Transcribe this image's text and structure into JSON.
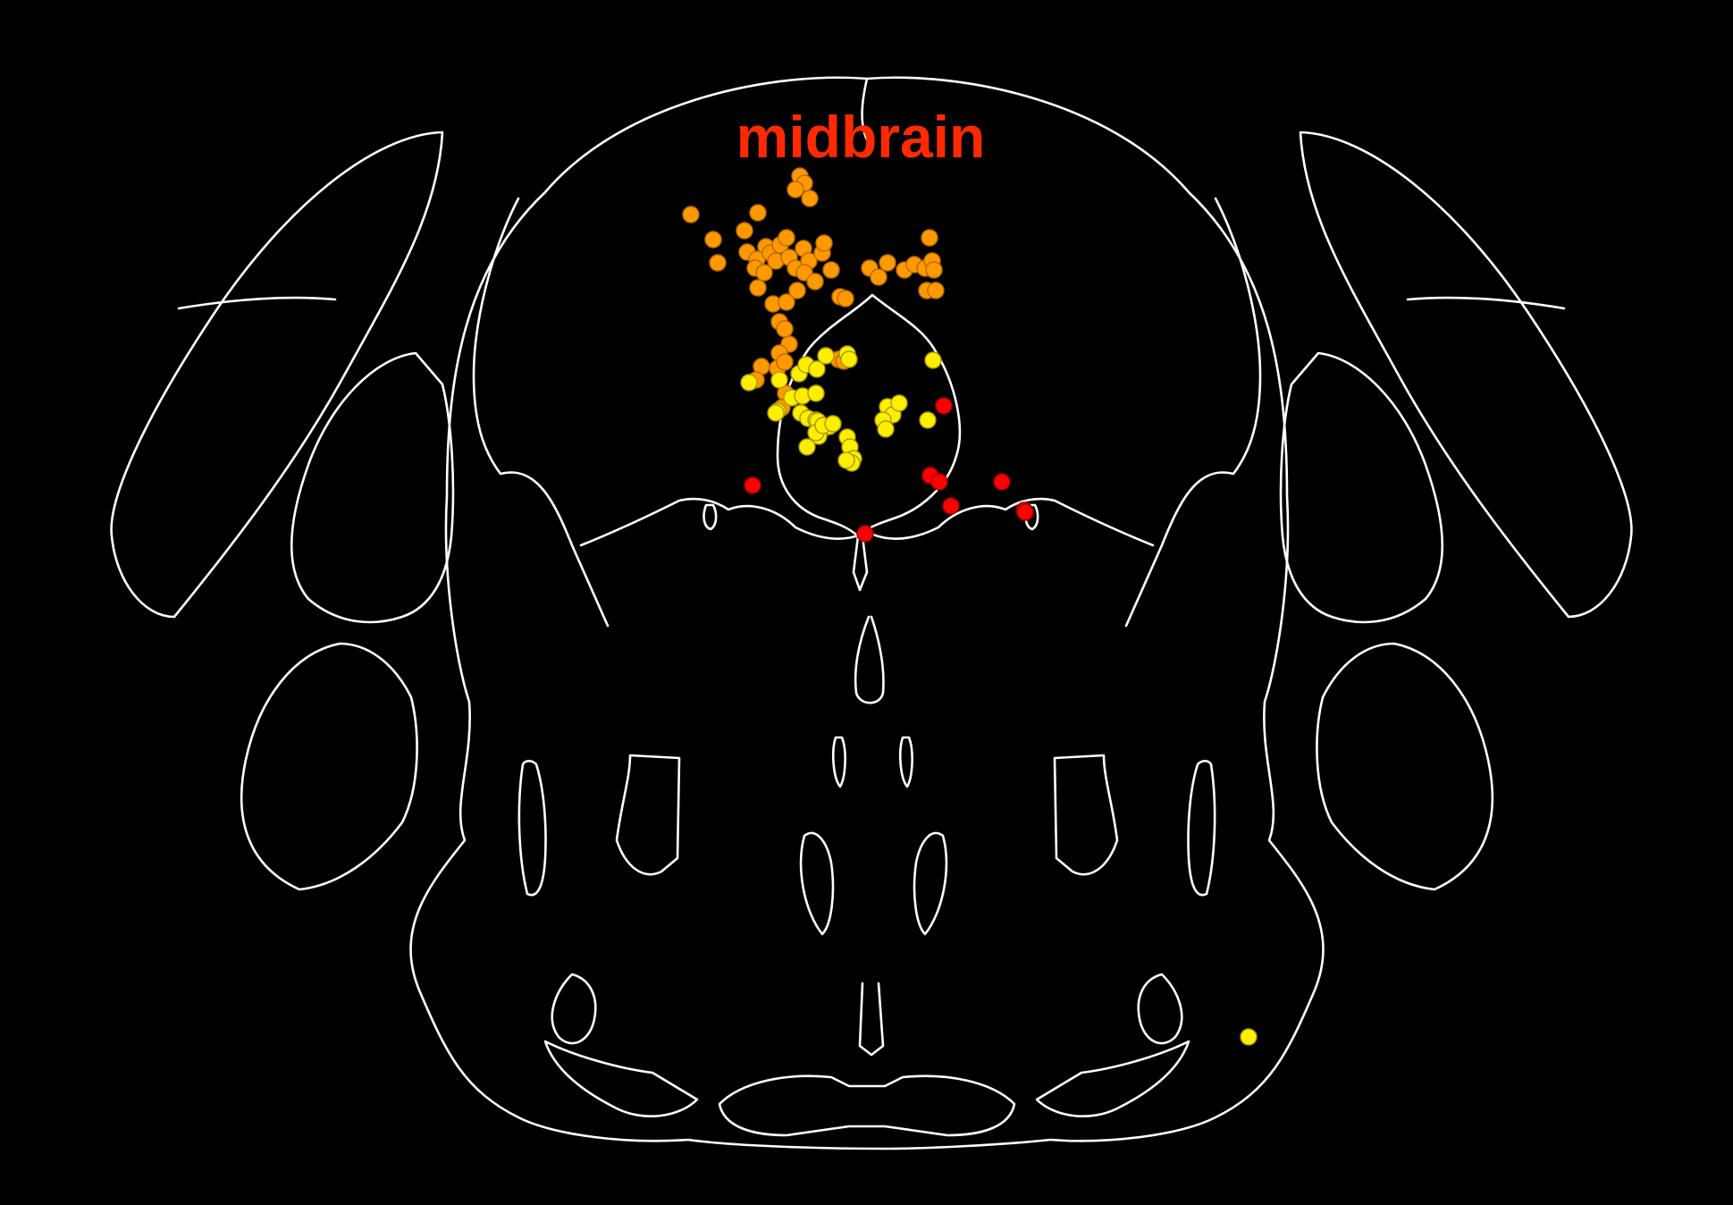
{
  "label": {
    "text": "midbrain",
    "color": "#ff2a00"
  },
  "colors": {
    "background": "#000000",
    "outline": "#ffffff"
  },
  "chart_data": {
    "type": "scatter",
    "series": [
      {
        "fill": "#ff9900",
        "edge": "#b86a00",
        "points": [
          [
            895,
            197
          ],
          [
            900,
            205
          ],
          [
            890,
            212
          ],
          [
            906,
            222
          ],
          [
            773,
            240
          ],
          [
            848,
            238
          ],
          [
            798,
            268
          ],
          [
            833,
            258
          ],
          [
            836,
            282
          ],
          [
            857,
            276
          ],
          [
            847,
            290
          ],
          [
            862,
            283
          ],
          [
            873,
            274
          ],
          [
            880,
            266
          ],
          [
            845,
            300
          ],
          [
            868,
            292
          ],
          [
            855,
            305
          ],
          [
            883,
            288
          ],
          [
            899,
            278
          ],
          [
            890,
            300
          ],
          [
            905,
            292
          ],
          [
            920,
            283
          ],
          [
            900,
            305
          ],
          [
            912,
            315
          ],
          [
            922,
            272
          ],
          [
            803,
            294
          ],
          [
            848,
            322
          ],
          [
            865,
            340
          ],
          [
            880,
            338
          ],
          [
            892,
            325
          ],
          [
            930,
            302
          ],
          [
            872,
            360
          ],
          [
            878,
            368
          ],
          [
            883,
            385
          ],
          [
            872,
            395
          ],
          [
            870,
            412
          ],
          [
            878,
            405
          ],
          [
            940,
            332
          ],
          [
            946,
            334
          ],
          [
            1040,
            266
          ],
          [
            973,
            300
          ],
          [
            983,
            310
          ],
          [
            993,
            294
          ],
          [
            1012,
            302
          ],
          [
            1023,
            296
          ],
          [
            1035,
            300
          ],
          [
            1043,
            292
          ],
          [
            1045,
            302
          ],
          [
            1037,
            325
          ],
          [
            1047,
            325
          ],
          [
            938,
            402
          ],
          [
            944,
            404
          ],
          [
            852,
            410
          ],
          [
            879,
            440
          ],
          [
            875,
            456
          ],
          [
            846,
            425
          ]
        ]
      },
      {
        "fill": "#ffee00",
        "edge": "#a79a00",
        "points": [
          [
            838,
            428
          ],
          [
            872,
            425
          ],
          [
            894,
            418
          ],
          [
            902,
            408
          ],
          [
            914,
            413
          ],
          [
            924,
            398
          ],
          [
            886,
            445
          ],
          [
            898,
            443
          ],
          [
            913,
            440
          ],
          [
            870,
            460
          ],
          [
            896,
            462
          ],
          [
            904,
            468
          ],
          [
            913,
            470
          ],
          [
            868,
            462
          ],
          [
            918,
            478
          ],
          [
            915,
            471
          ],
          [
            924,
            478
          ],
          [
            928,
            477
          ],
          [
            916,
            488
          ],
          [
            913,
            484
          ],
          [
            921,
            476
          ],
          [
            932,
            474
          ],
          [
            948,
            396
          ],
          [
            950,
            402
          ],
          [
            948,
            489
          ],
          [
            903,
            500
          ],
          [
            951,
            500
          ],
          [
            955,
            513
          ],
          [
            953,
            518
          ],
          [
            947,
            515
          ],
          [
            993,
            455
          ],
          [
            999,
            464
          ],
          [
            1006,
            451
          ],
          [
            988,
            470
          ],
          [
            991,
            480
          ],
          [
            1038,
            470
          ],
          [
            1044,
            403
          ],
          [
            1397,
            1160
          ]
        ]
      },
      {
        "fill": "#ff0000",
        "edge": "#9c0000",
        "points": [
          [
            842,
            543
          ],
          [
            968,
            597
          ],
          [
            1056,
            454
          ],
          [
            1041,
            532
          ],
          [
            1051,
            539
          ],
          [
            1064,
            566
          ],
          [
            1121,
            539
          ],
          [
            1146,
            571
          ],
          [
            1147,
            573
          ]
        ]
      }
    ]
  }
}
